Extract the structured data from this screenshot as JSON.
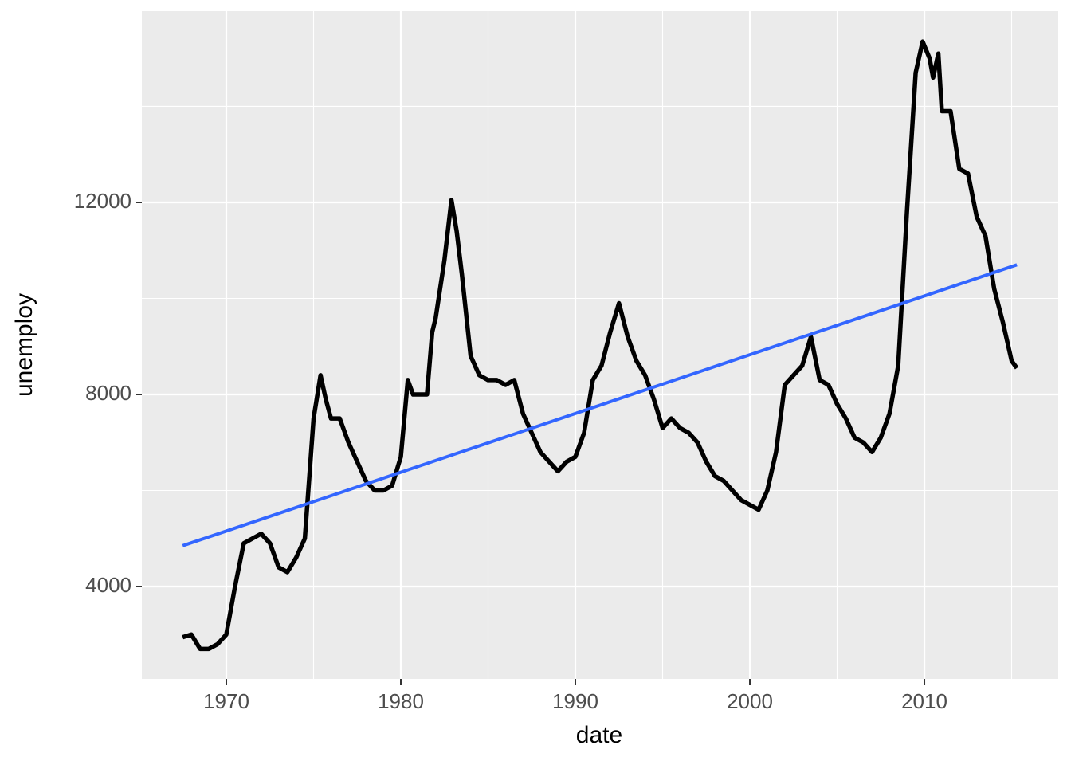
{
  "chart_data": {
    "type": "line",
    "x_label": "date",
    "y_label": "unemploy",
    "x": [
      1967.5,
      1968,
      1968.5,
      1969,
      1969.5,
      1970,
      1970.5,
      1971,
      1971.5,
      1972,
      1972.5,
      1973,
      1973.5,
      1974,
      1974.5,
      1975,
      1975.4,
      1975.7,
      1976,
      1976.5,
      1977,
      1977.5,
      1978,
      1978.5,
      1979,
      1979.5,
      1980,
      1980.4,
      1980.7,
      1981,
      1981.5,
      1981.8,
      1982,
      1982.5,
      1982.9,
      1983.2,
      1983.5,
      1984,
      1984.5,
      1985,
      1985.5,
      1986,
      1986.5,
      1987,
      1987.5,
      1988,
      1988.5,
      1989,
      1989.5,
      1990,
      1990.5,
      1991,
      1991.5,
      1992,
      1992.5,
      1993,
      1993.5,
      1994,
      1994.5,
      1995,
      1995.5,
      1996,
      1996.5,
      1997,
      1997.5,
      1998,
      1998.5,
      1999,
      1999.5,
      2000,
      2000.5,
      2001,
      2001.5,
      2002,
      2002.5,
      2003,
      2003.5,
      2004,
      2004.5,
      2005,
      2005.5,
      2006,
      2006.5,
      2007,
      2007.5,
      2008,
      2008.5,
      2009,
      2009.5,
      2009.9,
      2010.3,
      2010.5,
      2010.8,
      2011,
      2011.5,
      2012,
      2012.5,
      2013,
      2013.5,
      2014,
      2014.5,
      2015,
      2015.3
    ],
    "values": [
      2944,
      3000,
      2700,
      2700,
      2800,
      3000,
      4000,
      4900,
      5000,
      5100,
      4900,
      4400,
      4300,
      4600,
      5000,
      7500,
      8400,
      7900,
      7500,
      7500,
      7000,
      6600,
      6200,
      6000,
      6000,
      6100,
      6700,
      8300,
      8000,
      8000,
      8000,
      9300,
      9600,
      10800,
      12050,
      11400,
      10500,
      8800,
      8400,
      8300,
      8300,
      8200,
      8300,
      7600,
      7200,
      6800,
      6600,
      6400,
      6600,
      6700,
      7200,
      8300,
      8600,
      9300,
      9900,
      9200,
      8700,
      8400,
      7900,
      7300,
      7500,
      7300,
      7200,
      7000,
      6600,
      6300,
      6200,
      6000,
      5800,
      5700,
      5600,
      6000,
      6800,
      8200,
      8400,
      8600,
      9200,
      8300,
      8200,
      7800,
      7500,
      7100,
      7000,
      6800,
      7100,
      7600,
      8600,
      11800,
      14700,
      15350,
      15000,
      14600,
      15100,
      13900,
      13900,
      12700,
      12600,
      11700,
      11300,
      10200,
      9500,
      8700,
      8550
    ],
    "color": "#000000",
    "trend": {
      "x": [
        1967.5,
        2015.3
      ],
      "values": [
        4850,
        10700
      ],
      "color": "#3366ff"
    },
    "xlim": [
      1965.16,
      2017.67
    ],
    "ylim": [
      2075,
      15983
    ],
    "xticks": [
      1970,
      1980,
      1990,
      2000,
      2010
    ],
    "yticks": [
      4000,
      8000,
      12000
    ],
    "x_minor_ticks": [
      1975,
      1985,
      1995,
      2005,
      2015
    ],
    "y_minor_ticks": [
      6000,
      10000,
      14000
    ],
    "grid": true
  }
}
